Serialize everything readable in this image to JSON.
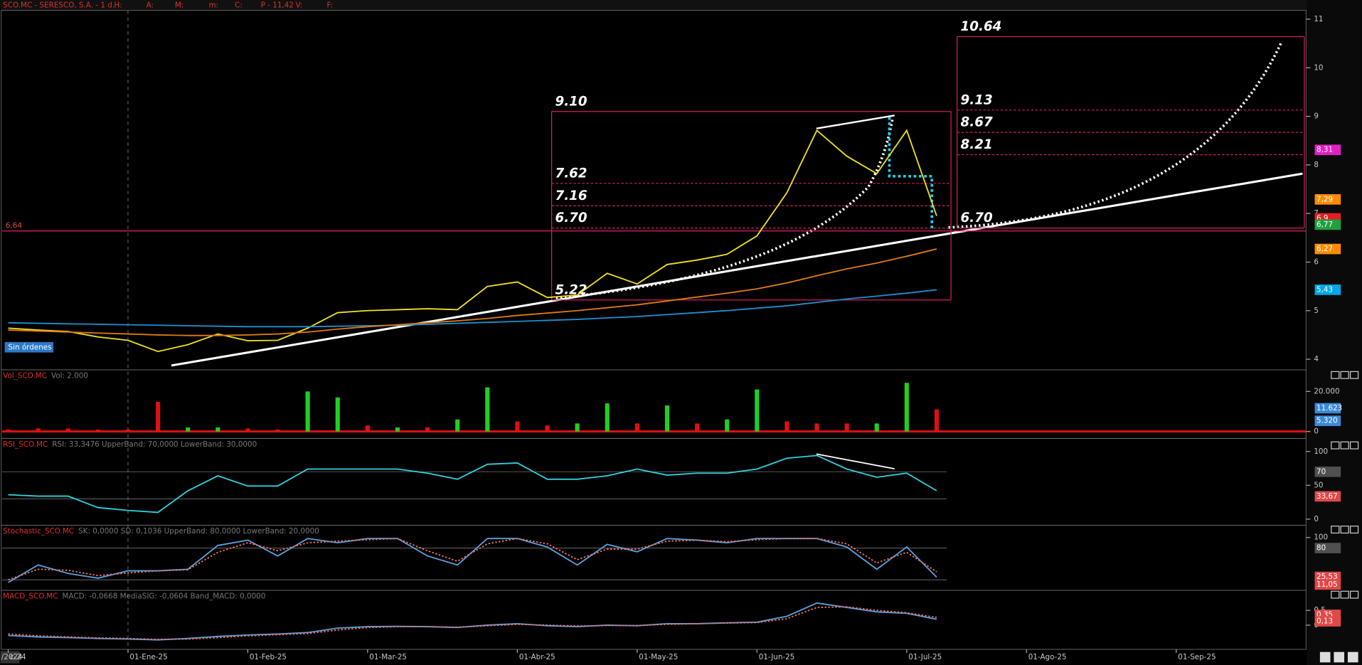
{
  "header": {
    "title": "SCO.MC - SERESCO, S.A. - 1 d.",
    "fields": [
      "H:",
      "A:",
      "M:",
      "m:",
      "C:",
      "P - 11,42",
      "V:",
      "F:"
    ]
  },
  "button": "Sin órdenes",
  "corner_label": "/2024",
  "chart_data": [
    {
      "type": "line",
      "categories": [
        "c-24",
        null,
        null,
        null,
        "01-Ene-25",
        null,
        null,
        null,
        "01-Feb-25",
        null,
        null,
        null,
        "01-Mar-25",
        null,
        null,
        null,
        null,
        "01-Abr-25",
        null,
        null,
        null,
        "01-May-25",
        null,
        null,
        null,
        "01-Jun-25",
        null,
        null,
        null,
        null,
        "01-Jul-25",
        null,
        null,
        null,
        "01-Ago-25",
        null,
        null,
        null,
        null,
        "01-Sep-25"
      ],
      "series": [
        {
          "color": "#f0e020",
          "values": [
            4.64,
            4.6,
            4.57,
            4.46,
            4.39,
            4.16,
            4.3,
            4.52,
            4.38,
            4.39,
            4.64,
            4.96,
            5.0,
            5.02,
            5.04,
            5.02,
            5.5,
            5.59,
            5.27,
            5.32,
            5.77,
            5.55,
            5.95,
            6.04,
            6.16,
            6.54,
            7.43,
            8.71,
            8.18,
            7.82,
            8.71,
            6.95,
            null,
            null,
            null,
            null,
            null,
            null,
            null,
            null
          ]
        },
        {
          "color": "#1e8fd0",
          "values": [
            4.75,
            4.74,
            4.73,
            4.72,
            4.71,
            4.7,
            4.69,
            4.68,
            4.67,
            4.67,
            4.67,
            4.68,
            4.69,
            4.7,
            4.72,
            4.74,
            4.76,
            4.78,
            4.8,
            4.82,
            4.85,
            4.88,
            4.92,
            4.96,
            5.0,
            5.05,
            5.1,
            5.17,
            5.24,
            5.3,
            5.36,
            5.43,
            null,
            null,
            null,
            null,
            null,
            null,
            null,
            null
          ]
        },
        {
          "color": "#e07a10",
          "values": [
            4.6,
            4.58,
            4.56,
            4.54,
            4.52,
            4.5,
            4.49,
            4.49,
            4.5,
            4.52,
            4.56,
            4.62,
            4.67,
            4.71,
            4.75,
            4.79,
            4.84,
            4.9,
            4.95,
            5.0,
            5.06,
            5.12,
            5.2,
            5.28,
            5.36,
            5.45,
            5.57,
            5.72,
            5.86,
            5.98,
            6.12,
            6.27,
            null,
            null,
            null,
            null,
            null,
            null,
            null,
            null
          ]
        }
      ],
      "ylim": [
        3.8,
        11.18
      ],
      "yticks": [
        4,
        5,
        6,
        7,
        8,
        9,
        10,
        11
      ],
      "hline": {
        "value": 6.64,
        "label": "6,64"
      },
      "levels": [
        [
          {
            "value": 9.1,
            "label": "9.10"
          },
          {
            "value": 7.62,
            "label": "7.62"
          },
          {
            "value": 7.16,
            "label": "7.16"
          },
          {
            "value": 6.7,
            "label": "6.70"
          },
          {
            "value": 5.22,
            "label": "5.22"
          }
        ],
        [
          {
            "value": 10.64,
            "label": "10.64"
          },
          {
            "value": 9.13,
            "label": "9.13"
          },
          {
            "value": 8.67,
            "label": "8.67"
          },
          {
            "value": 8.21,
            "label": "8.21"
          },
          {
            "value": 6.7,
            "label": "6.70"
          }
        ]
      ],
      "tags": [
        {
          "value": 8.31,
          "label": "8,31",
          "color": "#e020c0"
        },
        {
          "value": 7.29,
          "label": "7,29",
          "color": "#ff8c00"
        },
        {
          "value": 6.9,
          "label": "6,9",
          "color": "#e02020"
        },
        {
          "value": 6.77,
          "label": "6,77",
          "color": "#20a040"
        },
        {
          "value": 6.27,
          "label": "6,27",
          "color": "#ff8c00"
        },
        {
          "value": 5.43,
          "label": "5,43",
          "color": "#00a8e8"
        }
      ]
    },
    {
      "type": "bar",
      "name": "Vol_SCO.MC",
      "info": "Vol: 2.000",
      "values": [
        1000,
        1500,
        1500,
        1000,
        1000,
        14800,
        2000,
        2000,
        1500,
        1000,
        20000,
        17000,
        3000,
        2000,
        2000,
        6000,
        22000,
        5000,
        3000,
        4000,
        14000,
        4000,
        13000,
        4000,
        6000,
        21000,
        5000,
        4000,
        4000,
        4000,
        24300,
        11000,
        null,
        null,
        null,
        null,
        null,
        null,
        null,
        null
      ],
      "bar_colors": [
        "#e01010",
        "#e01010",
        "#e01010",
        "#e01010",
        "#e01010",
        "#e01010",
        "#20d020",
        "#20d020",
        "#e01010",
        "#e01010",
        "#20d020",
        "#20d020",
        "#e01010",
        "#20d020",
        "#e01010",
        "#20d020",
        "#20d020",
        "#e01010",
        "#e01010",
        "#20d020",
        "#20d020",
        "#e01010",
        "#20d020",
        "#e01010",
        "#20d020",
        "#20d020",
        "#e01010",
        "#e01010",
        "#e01010",
        "#20d020",
        "#20d020",
        "#e01010",
        null,
        null,
        null,
        null,
        null,
        null,
        null,
        null
      ],
      "ylim": [
        -1300,
        25600
      ],
      "yticks": [
        {
          "value": 20000,
          "label": "20.000"
        },
        0
      ],
      "tags": [
        {
          "value": 11623,
          "label": "11.623",
          "color": "#3a8ad8"
        },
        {
          "value": 5320,
          "label": "5.320",
          "color": "#3a8ad8"
        }
      ]
    },
    {
      "type": "line",
      "name": "RSI_SCO.MC",
      "info": "RSI: 33,3476  UpperBand: 70,0000  LowerBand: 30,0000",
      "series": [
        {
          "color": "#30d0e0",
          "values": [
            36,
            34,
            34,
            17,
            13,
            10,
            42,
            64,
            49,
            49,
            74,
            74,
            74,
            74,
            68,
            59,
            81,
            83,
            59,
            59,
            64,
            74,
            65,
            68,
            68,
            74,
            90,
            94,
            74,
            62,
            68,
            42,
            null,
            null,
            null,
            null,
            null,
            null,
            null,
            null
          ]
        }
      ],
      "ylim": [
        -7.7,
        110.3
      ],
      "yticks": [
        100,
        50,
        0
      ],
      "bands": [
        70,
        30
      ],
      "tags": [
        {
          "value": 70,
          "label": "70",
          "color": "#505050"
        },
        {
          "value": 33.67,
          "label": "33,67",
          "color": "#e04848"
        }
      ]
    },
    {
      "type": "line",
      "name": "Stochastic_SCO.MC",
      "info": "SK: 0,0000  SD: 0,1036  UpperBand: 80,0000  LowerBand: 20,0000",
      "series": [
        {
          "color": "#5aa0e0",
          "values": [
            15,
            48,
            32,
            23,
            37,
            37,
            40,
            85,
            95,
            65,
            98,
            90,
            98,
            98,
            65,
            48,
            98,
            98,
            82,
            48,
            87,
            73,
            98,
            95,
            90,
            98,
            98,
            98,
            82,
            40,
            82,
            25,
            null,
            null,
            null,
            null,
            null,
            null,
            null,
            null
          ]
        },
        {
          "color": "#f07060",
          "dash": true,
          "values": [
            20,
            40,
            38,
            28,
            33,
            37,
            39,
            72,
            90,
            75,
            90,
            93,
            96,
            98,
            75,
            55,
            88,
            98,
            88,
            58,
            78,
            78,
            93,
            95,
            92,
            96,
            98,
            98,
            88,
            52,
            72,
            35,
            null,
            null,
            null,
            null,
            null,
            null,
            null,
            null
          ]
        }
      ],
      "ylim": [
        1.7,
        111.7
      ],
      "yticks": [
        100
      ],
      "bands": [
        80,
        20
      ],
      "tags": [
        {
          "value": 80,
          "label": "80",
          "color": "#505050"
        },
        {
          "value": 25.53,
          "label": "25,53",
          "color": "#e04848"
        },
        {
          "value": 11.05,
          "label": "11,05",
          "color": "#e04848"
        }
      ]
    },
    {
      "type": "line",
      "name": "MACD_SCO.MC",
      "info": "MACD: -0,0668  MediaSIG: -0,0604  Band_MACD: 0,0000",
      "series": [
        {
          "color": "#5aa0e0",
          "values": [
            -0.35,
            -0.4,
            -0.42,
            -0.45,
            -0.47,
            -0.5,
            -0.45,
            -0.38,
            -0.33,
            -0.3,
            -0.25,
            -0.1,
            -0.05,
            -0.04,
            -0.05,
            -0.08,
            0.0,
            0.05,
            -0.02,
            -0.05,
            0.0,
            -0.02,
            0.05,
            0.05,
            0.08,
            0.1,
            0.3,
            0.75,
            0.6,
            0.45,
            0.4,
            0.2,
            null,
            null,
            null,
            null,
            null,
            null,
            null,
            null
          ]
        },
        {
          "color": "#f07060",
          "dash": true,
          "values": [
            -0.3,
            -0.36,
            -0.4,
            -0.43,
            -0.45,
            -0.48,
            -0.47,
            -0.42,
            -0.36,
            -0.32,
            -0.28,
            -0.16,
            -0.08,
            -0.05,
            -0.05,
            -0.07,
            -0.02,
            0.03,
            0.0,
            -0.03,
            -0.01,
            -0.01,
            0.03,
            0.05,
            0.07,
            0.09,
            0.22,
            0.6,
            0.62,
            0.5,
            0.42,
            0.26,
            null,
            null,
            null,
            null,
            null,
            null,
            null,
            null
          ]
        }
      ],
      "ylim": [
        -0.76,
        1.09
      ],
      "yticks": [
        0.5,
        0
      ],
      "tags": [
        {
          "value": 0.35,
          "label": "0,35",
          "color": "#e04848"
        },
        {
          "value": 0.13,
          "label": "0,13",
          "color": "#e04848"
        }
      ]
    }
  ]
}
